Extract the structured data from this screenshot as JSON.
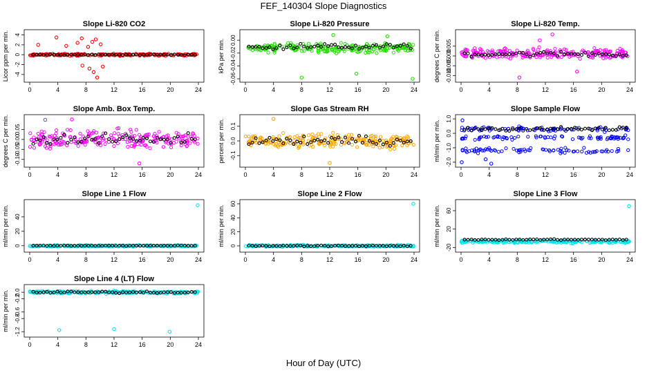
{
  "page": {
    "title": "FEF_140304  Slope Diagnostics",
    "xlabel": "Hour of Day (UTC)"
  },
  "colors": {
    "red": "#ff0000",
    "green": "#22dd00",
    "magenta": "#ff00ff",
    "orange": "#ffa500",
    "blue": "#0000ff",
    "cyan": "#00e5ee",
    "black": "#000000"
  },
  "chart_data": [
    {
      "type": "scatter",
      "title": "Slope Li-820 CO2",
      "ylabel": "Licor ppm per min.",
      "xlim": [
        0,
        24
      ],
      "ylim": [
        -5,
        4.5
      ],
      "yticks": [
        -4,
        -2,
        0,
        2,
        4
      ],
      "xticks": [
        0,
        4,
        8,
        12,
        16,
        20,
        24
      ],
      "color": "#ff0000",
      "band_center": 0.0,
      "band_spread": 0.3,
      "outliers": [
        [
          3.8,
          3.5
        ],
        [
          5.2,
          1.8
        ],
        [
          6.8,
          2.4
        ],
        [
          7.4,
          3.3
        ],
        [
          8.3,
          1.6
        ],
        [
          8.9,
          2.6
        ],
        [
          9.4,
          3.1
        ],
        [
          10.1,
          2.1
        ],
        [
          7.5,
          -2.2
        ],
        [
          8.5,
          -2.8
        ],
        [
          9.1,
          -3.5
        ],
        [
          9.6,
          -4.6
        ],
        [
          10.4,
          -2.4
        ],
        [
          1.2,
          2.0
        ]
      ],
      "black_center": 0.0,
      "black_spread": 0.15
    },
    {
      "type": "scatter",
      "title": "Slope Li-820 Pressure",
      "ylabel": "kPa per min.",
      "xlim": [
        0,
        24
      ],
      "ylim": [
        -0.061,
        0.012
      ],
      "yticks": [
        -0.06,
        -0.04,
        -0.02,
        0.0
      ],
      "ytick_labels": [
        "-0.06",
        "-0.04",
        "-0.02",
        "0.00"
      ],
      "xticks": [
        0,
        4,
        8,
        12,
        16,
        20,
        24
      ],
      "color": "#22dd00",
      "band_center": -0.012,
      "band_spread": 0.01,
      "outliers": [
        [
          8.0,
          -0.058
        ],
        [
          15.8,
          -0.052
        ],
        [
          23.8,
          -0.06
        ],
        [
          12.5,
          0.008
        ],
        [
          20.2,
          0.006
        ]
      ],
      "black_center": -0.01,
      "black_spread": 0.006
    },
    {
      "type": "scatter",
      "title": "Slope Li-820 Temp.",
      "ylabel": "degrees C per min.",
      "xlim": [
        0,
        24
      ],
      "ylim": [
        -0.012,
        0.012
      ],
      "yticks": [
        -0.01,
        -0.005,
        0.0,
        0.005
      ],
      "ytick_labels": [
        "-0.010",
        "-0.005",
        "0.000",
        "0.005"
      ],
      "xticks": [
        0,
        4,
        8,
        12,
        16,
        20,
        24
      ],
      "color": "#ff00ff",
      "band_center": 0.001,
      "band_spread": 0.004,
      "outliers": [
        [
          13.0,
          0.011
        ],
        [
          8.3,
          -0.011
        ],
        [
          16.5,
          -0.008
        ],
        [
          11.2,
          0.008
        ]
      ],
      "black_center": 0.001,
      "black_spread": 0.002
    },
    {
      "type": "scatter",
      "title": "Slope Amb. Box Temp.",
      "ylabel": "degrees C per min.",
      "xlim": [
        0,
        24
      ],
      "ylim": [
        -0.125,
        0.11
      ],
      "yticks": [
        -0.1,
        -0.05,
        0.0,
        0.05
      ],
      "ytick_labels": [
        "-0.10",
        "-0.05",
        "0.00",
        "0.05"
      ],
      "xticks": [
        0,
        4,
        8,
        12,
        16,
        20,
        24
      ],
      "color": "#ff00ff",
      "band_center": 0.0,
      "band_spread": 0.065,
      "outliers": [
        [
          15.6,
          -0.12
        ],
        [
          6.0,
          0.1
        ],
        [
          2.2,
          0.098
        ]
      ],
      "black_center": 0.0,
      "black_spread": 0.035
    },
    {
      "type": "scatter",
      "title": "Slope Gas Stream RH",
      "ylabel": "percent per min.",
      "xlim": [
        0,
        24
      ],
      "ylim": [
        -0.16,
        0.16
      ],
      "yticks": [
        -0.1,
        0.0,
        0.1
      ],
      "ytick_labels": [
        "-0.1",
        "0.0",
        "0.1"
      ],
      "xticks": [
        0,
        4,
        8,
        12,
        16,
        20,
        24
      ],
      "color": "#ffa500",
      "band_center": 0.0,
      "band_spread": 0.075,
      "outliers": [
        [
          4.0,
          0.15
        ],
        [
          12.0,
          -0.15
        ]
      ],
      "black_center": 0.0,
      "black_spread": 0.045
    },
    {
      "type": "scatter",
      "title": "Slope Sample Flow",
      "ylabel": "ml/min per min.",
      "xlim": [
        0,
        24
      ],
      "ylim": [
        -2.15,
        1.1
      ],
      "yticks": [
        -2.0,
        -1.0,
        0.0,
        1.0
      ],
      "ytick_labels": [
        "-2.0",
        "-1.0",
        "0.0",
        "1.0"
      ],
      "xticks": [
        0,
        4,
        8,
        12,
        16,
        20,
        24
      ],
      "color": "#0000ff",
      "bands": [
        [
          0.3,
          0.25
        ],
        [
          -0.3,
          0.2
        ],
        [
          -1.2,
          0.25
        ]
      ],
      "outliers": [
        [
          0.2,
          0.9
        ],
        [
          0.1,
          -2.0
        ],
        [
          4.3,
          -2.1
        ],
        [
          3.5,
          -1.8
        ]
      ],
      "black_center": 0.3,
      "black_spread": 0.2
    },
    {
      "type": "scatter",
      "title": "Slope Line 1 Flow",
      "ylabel": "ml/min per min.",
      "xlim": [
        0,
        24
      ],
      "ylim": [
        -5,
        60
      ],
      "yticks": [
        0,
        20,
        40
      ],
      "xticks": [
        0,
        4,
        8,
        12,
        16,
        20,
        24
      ],
      "color": "#00e5ee",
      "band_center": 0.0,
      "band_spread": 1.5,
      "outliers": [
        [
          23.9,
          56.0
        ]
      ],
      "black_center": 0.0,
      "black_spread": 0.6
    },
    {
      "type": "scatter",
      "title": "Slope Line 2 Flow",
      "ylabel": "ml/min per min.",
      "xlim": [
        0,
        24
      ],
      "ylim": [
        -5,
        62
      ],
      "yticks": [
        0,
        20,
        40,
        60
      ],
      "xticks": [
        0,
        4,
        8,
        12,
        16,
        20,
        24
      ],
      "color": "#00e5ee",
      "band_center": 0.0,
      "band_spread": 2.0,
      "outliers": [
        [
          23.9,
          60.0
        ]
      ],
      "black_center": 0.0,
      "black_spread": 1.0
    },
    {
      "type": "scatter",
      "title": "Slope Line 3 Flow",
      "ylabel": "ml/min per min.",
      "xlim": [
        0,
        24
      ],
      "ylim": [
        -24,
        78
      ],
      "yticks": [
        -20,
        20,
        60
      ],
      "xticks": [
        0,
        4,
        8,
        12,
        16,
        20,
        24
      ],
      "color": "#00e5ee",
      "band_center": -7.0,
      "band_spread": 5.0,
      "outliers": [
        [
          23.9,
          70.0
        ]
      ],
      "black_center": -3.0,
      "black_spread": 1.5
    },
    {
      "type": "scatter",
      "title": "Slope Line 4 (LT) Flow",
      "ylabel": "ml/min per min.",
      "xlim": [
        0,
        24
      ],
      "ylim": [
        -1.28,
        0.15
      ],
      "yticks": [
        -1.2,
        -0.8,
        -0.6,
        -0.2,
        0.0
      ],
      "ytick_labels": [
        "-1.2",
        "-0.8",
        "-0.6",
        "-0.2",
        "0.0"
      ],
      "xticks": [
        0,
        4,
        8,
        12,
        16,
        20,
        24
      ],
      "color": "#00e5ee",
      "band_center": 0.0,
      "band_spread": 0.06,
      "outliers": [
        [
          4.2,
          -1.15
        ],
        [
          12.0,
          -1.12
        ],
        [
          19.9,
          -1.2
        ]
      ],
      "black_center": 0.0,
      "black_spread": 0.04
    }
  ]
}
